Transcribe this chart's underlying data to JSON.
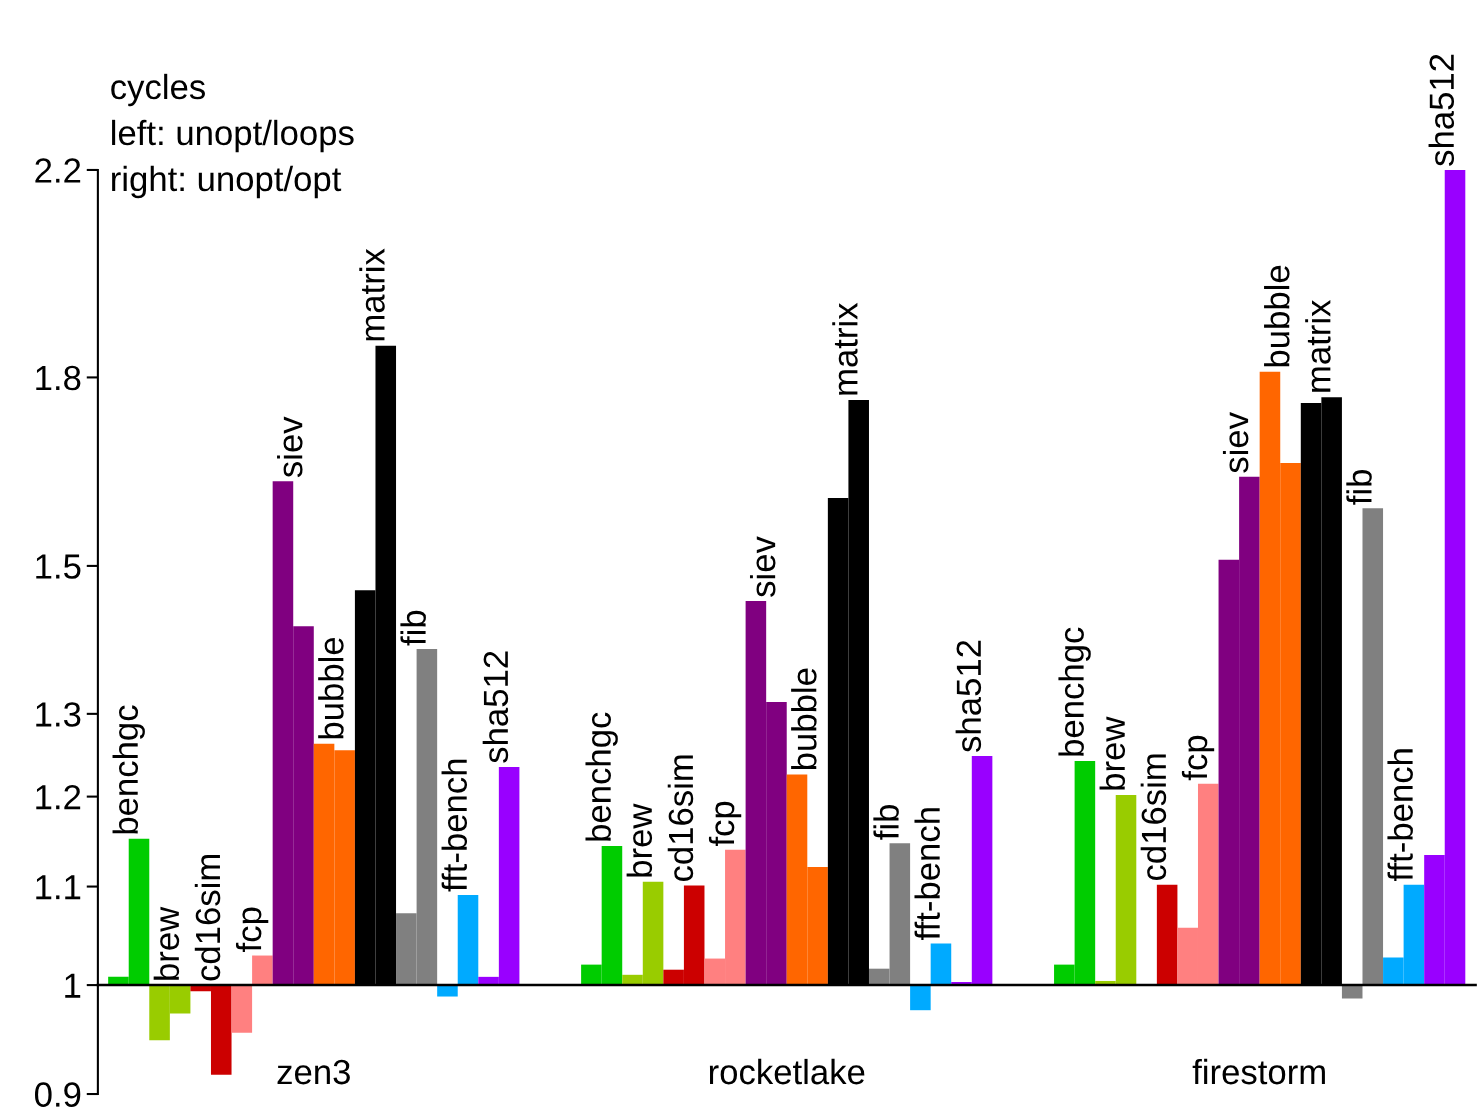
{
  "chart_data": {
    "type": "bar",
    "title": "cycles",
    "annotations": [
      "left: unopt/loops",
      "right: unopt/opt"
    ],
    "categories": [
      "zen3",
      "rocketlake",
      "firestorm"
    ],
    "log": "y",
    "ylim": [
      0.9,
      2.2
    ],
    "yticks": [
      0.9,
      1,
      1.1,
      1.2,
      1.3,
      1.5,
      1.8,
      2.2
    ],
    "series": [
      {
        "color": "#00cc00",
        "base": [
          1,
          1,
          1
        ],
        "values": [
          0.008,
          0.02,
          0.02
        ]
      },
      {
        "name": "benchgc",
        "color": "#00cc00",
        "base": [
          1,
          1,
          1
        ],
        "values": [
          0.152,
          0.144,
          0.242
        ]
      },
      {
        "color": "#99cc00",
        "base": [
          1,
          1,
          1
        ],
        "values": [
          -0.052,
          0.01,
          0.004
        ]
      },
      {
        "name": "brew",
        "color": "#99cc00",
        "base": [
          1,
          1,
          1
        ],
        "values": [
          -0.027,
          0.105,
          0.202
        ]
      },
      {
        "color": "#cc0000",
        "base": [
          1,
          1,
          null
        ],
        "values": [
          -0.006,
          0.015,
          null
        ]
      },
      {
        "name": "cd16sim",
        "color": "#cc0000",
        "base": [
          1,
          1,
          1
        ],
        "values": [
          -0.083,
          0.101,
          0.102
        ]
      },
      {
        "color": "#ff8080",
        "base": [
          1,
          1,
          1
        ],
        "values": [
          -0.045,
          0.026,
          0.057
        ]
      },
      {
        "name": "fcp",
        "color": "#ff8080",
        "base": [
          1,
          1,
          1
        ],
        "values": [
          0.029,
          0.14,
          0.215
        ]
      },
      {
        "color": "#800080",
        "base": [
          1,
          1,
          1
        ],
        "values": [
          0.628,
          0.45,
          0.509
        ]
      },
      {
        "name": "siev",
        "color": "#800080",
        "base": [
          1,
          1,
          1
        ],
        "values": [
          0.415,
          0.315,
          0.635
        ]
      },
      {
        "color": "#ff6600",
        "base": [
          1,
          1,
          1
        ],
        "values": [
          0.263,
          0.226,
          0.81
        ]
      },
      {
        "name": "bubble",
        "color": "#ff6600",
        "base": [
          1,
          1,
          1
        ],
        "values": [
          0.255,
          0.121,
          0.657
        ]
      },
      {
        "color": "#000000",
        "base": [
          1,
          1,
          1
        ],
        "values": [
          0.465,
          0.602,
          0.756
        ]
      },
      {
        "name": "matrix",
        "color": "#000000",
        "base": [
          1,
          1,
          1
        ],
        "values": [
          0.856,
          0.761,
          0.766
        ]
      },
      {
        "color": "#808080",
        "base": [
          1,
          1,
          1
        ],
        "values": [
          0.072,
          0.016,
          -0.013
        ]
      },
      {
        "name": "fib",
        "color": "#808080",
        "base": [
          1,
          1,
          1
        ],
        "values": [
          0.384,
          0.147,
          0.586
        ]
      },
      {
        "color": "#00aaff",
        "base": [
          1,
          1,
          1
        ],
        "values": [
          -0.011,
          -0.024,
          0.027
        ]
      },
      {
        "name": "fft-bench",
        "color": "#00aaff",
        "base": [
          1,
          1,
          1
        ],
        "values": [
          0.091,
          0.041,
          0.102
        ]
      },
      {
        "color": "#9900ff",
        "base": [
          1,
          1,
          1
        ],
        "values": [
          0.008,
          0.003,
          0.134
        ]
      },
      {
        "name": "sha512",
        "color": "#9900ff",
        "base": [
          1,
          1,
          1
        ],
        "values": [
          0.235,
          0.248,
          1.2
        ]
      }
    ]
  }
}
